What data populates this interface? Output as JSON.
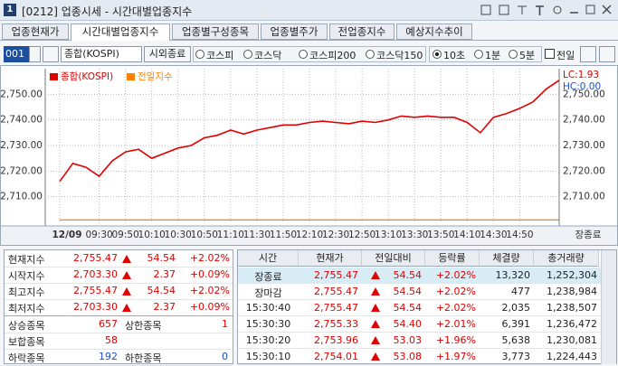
{
  "window": {
    "number": "1",
    "title": "[0212] 업종시세 - 시간대별업종지수"
  },
  "tabs": [
    "업종현재가",
    "시간대별업종지수",
    "업종별구성종목",
    "업종별주가",
    "전업종지수",
    "예상지수추이"
  ],
  "active_tab": 1,
  "toolbar": {
    "code": "001",
    "name": "종합(KOSPI)",
    "button": "시외종료",
    "markets": [
      "코스피",
      "코스닥",
      "코스피200",
      "코스닥150"
    ],
    "intervals": [
      "10초",
      "1분",
      "5분"
    ],
    "interval_selected": 0,
    "prev_day": "전일"
  },
  "chart_data": {
    "type": "line",
    "categories": [
      "12/09",
      null,
      null,
      "09:30",
      null,
      "09:50",
      null,
      "10:10",
      null,
      "10:30",
      null,
      "10:50",
      null,
      "11:10",
      null,
      "11:30",
      null,
      "11:50",
      null,
      "12:10",
      null,
      "12:30",
      null,
      "12:50",
      null,
      "13:10",
      null,
      "13:30",
      null,
      "13:50",
      null,
      "14:10",
      null,
      "14:30",
      null,
      "14:50",
      null,
      null,
      null
    ],
    "series": [
      {
        "name": "종합(KOSPI)",
        "color": "#e00000",
        "values": [
          2716,
          2723,
          2721.5,
          2718,
          2724,
          2727.5,
          2728.5,
          2725,
          2727,
          2729,
          2730,
          2733,
          2734,
          2736,
          2734.5,
          2736,
          2737,
          2738,
          2738,
          2739,
          2739.5,
          2739,
          2738.5,
          2739.5,
          2739,
          2740,
          2741.5,
          2741,
          2741.5,
          2741,
          2741,
          2739,
          2735,
          2741,
          2742.5,
          2744.5,
          2747,
          2752,
          2755.47
        ]
      },
      {
        "name": "전일지수",
        "color": "#ff8000",
        "values": [
          2700.93,
          2700.93,
          2700.93,
          2700.93,
          2700.93,
          2700.93,
          2700.93,
          2700.93,
          2700.93,
          2700.93,
          2700.93,
          2700.93,
          2700.93,
          2700.93,
          2700.93,
          2700.93,
          2700.93,
          2700.93,
          2700.93,
          2700.93,
          2700.93,
          2700.93,
          2700.93,
          2700.93,
          2700.93,
          2700.93,
          2700.93,
          2700.93,
          2700.93,
          2700.93,
          2700.93,
          2700.93,
          2700.93,
          2700.93,
          2700.93,
          2700.93,
          2700.93,
          2700.93,
          2700.93
        ]
      }
    ],
    "ylim": [
      2700,
      2760
    ],
    "yticks": [
      {
        "value": 2710,
        "label": "2,710.00"
      },
      {
        "value": 2720,
        "label": "2,720.00"
      },
      {
        "value": 2730,
        "label": "2,730.00"
      },
      {
        "value": 2740,
        "label": "2,740.00"
      },
      {
        "value": 2750,
        "label": "2,750.00"
      }
    ],
    "grid": true,
    "lc": "LC:1.93",
    "hc": "HC:0.00",
    "end_label": "장종료"
  },
  "summary": {
    "rows": [
      [
        "현재지수",
        "2,755.47",
        "54.54",
        "+2.02%"
      ],
      [
        "시작지수",
        "2,703.30",
        "2.37",
        "+0.09%"
      ],
      [
        "최고지수",
        "2,755.47",
        "54.54",
        "+2.02%"
      ],
      [
        "최저지수",
        "2,703.30",
        "2.37",
        "+0.09%"
      ]
    ],
    "stats": [
      [
        "상승종목",
        "657",
        "상한종목",
        "1"
      ],
      [
        "보합종목",
        "58"
      ],
      [
        "하락종목",
        "192",
        "하한종목",
        "0"
      ]
    ]
  },
  "ticks_table": {
    "headers": [
      "시간",
      "현재가",
      "전일대비",
      "등락률",
      "체결량",
      "총거래량"
    ],
    "rows": [
      [
        "장종료",
        "2,755.47",
        "54.54",
        "+2.02%",
        "13,320",
        "1,252,304"
      ],
      [
        "장마감",
        "2,755.47",
        "54.54",
        "+2.02%",
        "477",
        "1,238,984"
      ],
      [
        "15:30:40",
        "2,755.47",
        "54.54",
        "+2.02%",
        "2,035",
        "1,238,507"
      ],
      [
        "15:30:30",
        "2,755.33",
        "54.40",
        "+2.01%",
        "6,391",
        "1,236,472"
      ],
      [
        "15:30:20",
        "2,753.96",
        "53.03",
        "+1.96%",
        "5,638",
        "1,230,081"
      ],
      [
        "15:30:10",
        "2,754.01",
        "53.08",
        "+1.97%",
        "3,773",
        "1,224,443"
      ]
    ]
  }
}
